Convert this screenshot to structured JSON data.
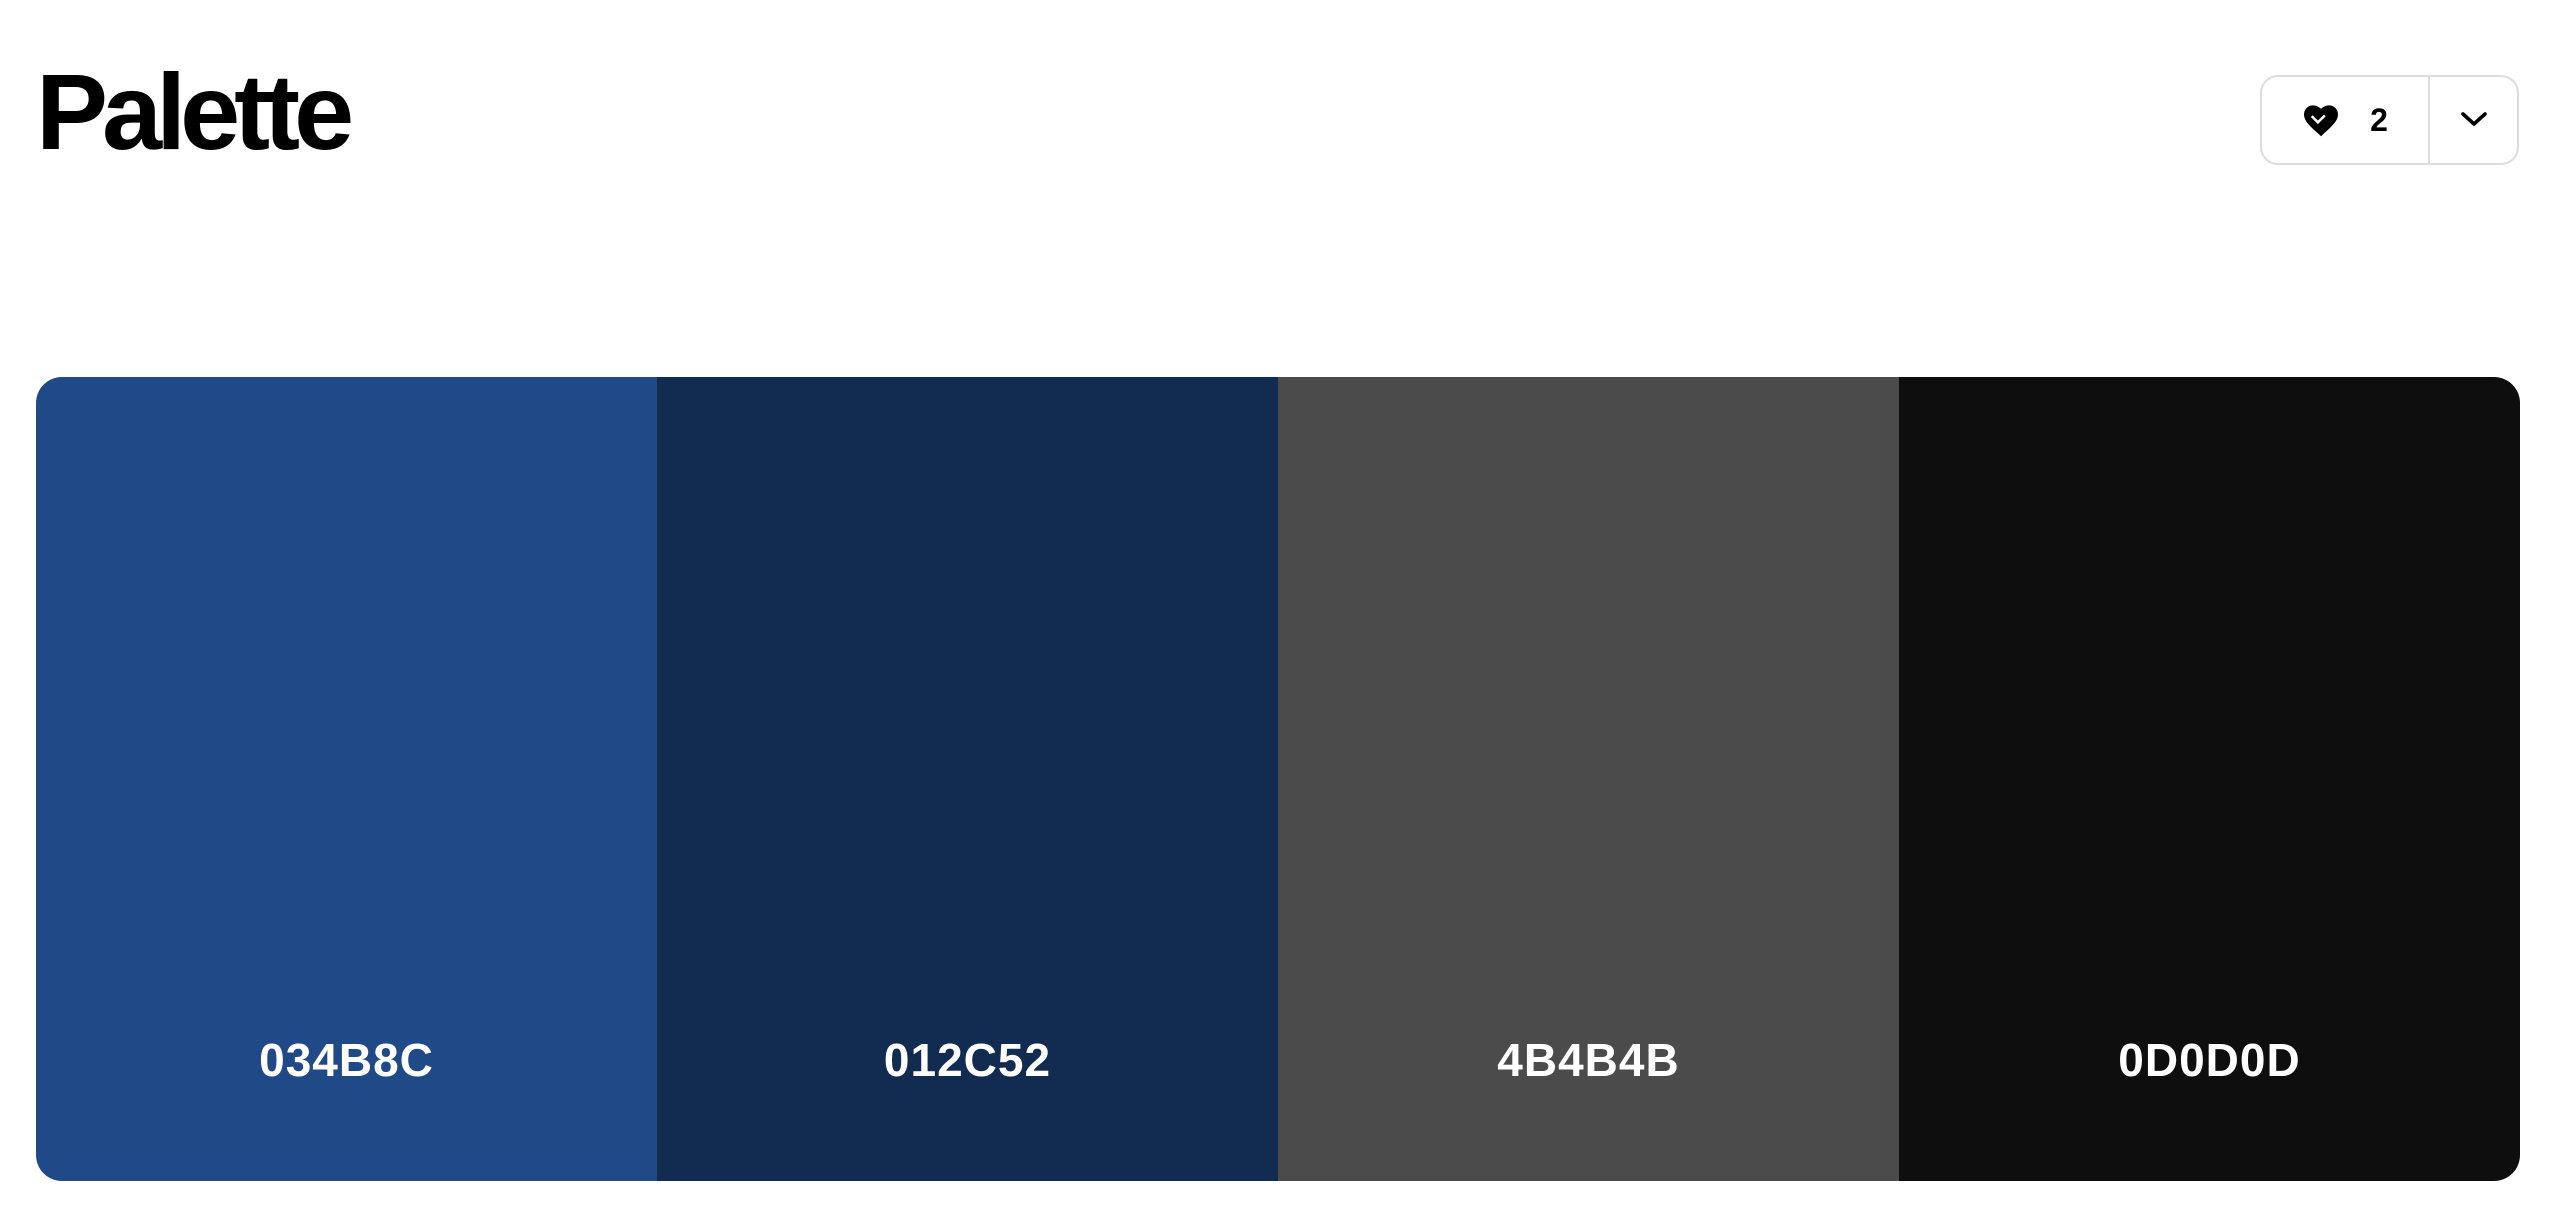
{
  "header": {
    "title": "Palette"
  },
  "actions": {
    "like_count": "2",
    "like_icon": "heart-icon",
    "more_icon": "chevron-down-icon"
  },
  "palette": {
    "swatches": [
      {
        "hex": "034B8C",
        "color": "#1F4A87"
      },
      {
        "hex": "012C52",
        "color": "#112B51"
      },
      {
        "hex": "4B4B4B",
        "color": "#4B4B4B"
      },
      {
        "hex": "0D0D0D",
        "color": "#0E0E0E"
      }
    ]
  }
}
